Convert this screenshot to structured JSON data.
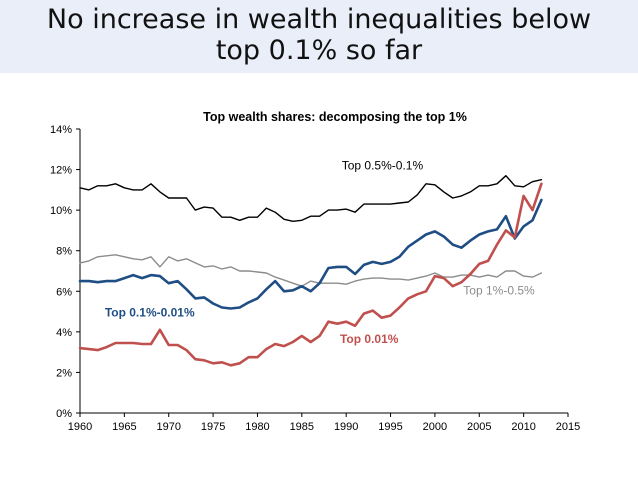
{
  "slide": {
    "title_line1": "No increase in wealth inequalities below",
    "title_line2": "top 0.1% so far",
    "header_bg": "#e9eef9"
  },
  "chart_data": {
    "type": "line",
    "title": "Top wealth shares: decomposing the top 1%",
    "xlabel": "",
    "ylabel": "",
    "xlim": [
      1960,
      2015
    ],
    "ylim": [
      0,
      14
    ],
    "x_ticks": [
      1960,
      1965,
      1970,
      1975,
      1980,
      1985,
      1990,
      1995,
      2000,
      2005,
      2010,
      2015
    ],
    "y_ticks": [
      0,
      2,
      4,
      6,
      8,
      10,
      12,
      14
    ],
    "y_tick_labels": [
      "0%",
      "2%",
      "4%",
      "6%",
      "8%",
      "10%",
      "12%",
      "14%"
    ],
    "grid": false,
    "x": [
      1960,
      1961,
      1962,
      1963,
      1964,
      1965,
      1966,
      1967,
      1968,
      1969,
      1970,
      1971,
      1972,
      1973,
      1974,
      1975,
      1976,
      1977,
      1978,
      1979,
      1980,
      1981,
      1982,
      1983,
      1984,
      1985,
      1986,
      1987,
      1988,
      1989,
      1990,
      1991,
      1992,
      1993,
      1994,
      1995,
      1996,
      1997,
      1998,
      1999,
      2000,
      2001,
      2002,
      2003,
      2004,
      2005,
      2006,
      2007,
      2008,
      2009,
      2010,
      2011,
      2012
    ],
    "series": [
      {
        "name": "Top 0.5%-0.1%",
        "color": "#000000",
        "width": 1.4,
        "values": [
          11.1,
          11.0,
          11.2,
          11.2,
          11.3,
          11.1,
          11.0,
          11.0,
          11.3,
          10.9,
          10.6,
          10.6,
          10.6,
          10.0,
          10.15,
          10.1,
          9.65,
          9.65,
          9.5,
          9.65,
          9.65,
          10.1,
          9.9,
          9.55,
          9.45,
          9.5,
          9.7,
          9.7,
          10.0,
          10.0,
          10.05,
          9.9,
          10.3,
          10.3,
          10.3,
          10.3,
          10.35,
          10.4,
          10.75,
          11.3,
          11.25,
          10.9,
          10.6,
          10.7,
          10.9,
          11.2,
          11.2,
          11.3,
          11.7,
          11.2,
          11.15,
          11.4,
          11.5
        ]
      },
      {
        "name": "Top 1%-0.5%",
        "color": "#8c8c8c",
        "width": 1.4,
        "values": [
          7.4,
          7.5,
          7.7,
          7.75,
          7.8,
          7.7,
          7.6,
          7.55,
          7.7,
          7.2,
          7.7,
          7.5,
          7.6,
          7.4,
          7.2,
          7.25,
          7.1,
          7.2,
          7.0,
          7.0,
          6.95,
          6.9,
          6.7,
          6.55,
          6.4,
          6.25,
          6.5,
          6.4,
          6.4,
          6.4,
          6.35,
          6.5,
          6.6,
          6.65,
          6.65,
          6.6,
          6.6,
          6.55,
          6.65,
          6.75,
          6.9,
          6.7,
          6.7,
          6.8,
          6.8,
          6.7,
          6.8,
          6.7,
          7.0,
          7.0,
          6.75,
          6.7,
          6.9
        ]
      },
      {
        "name": "Top 0.1%-0.01%",
        "color": "#1f4e84",
        "width": 2.6,
        "values": [
          6.5,
          6.5,
          6.45,
          6.5,
          6.5,
          6.65,
          6.8,
          6.65,
          6.8,
          6.75,
          6.4,
          6.5,
          6.1,
          5.65,
          5.7,
          5.4,
          5.2,
          5.15,
          5.2,
          5.45,
          5.65,
          6.1,
          6.5,
          6.0,
          6.05,
          6.25,
          6.0,
          6.4,
          7.15,
          7.2,
          7.2,
          6.85,
          7.3,
          7.45,
          7.35,
          7.45,
          7.7,
          8.2,
          8.5,
          8.8,
          8.95,
          8.7,
          8.3,
          8.15,
          8.5,
          8.8,
          8.95,
          9.05,
          9.7,
          8.6,
          9.2,
          9.5,
          10.5
        ]
      },
      {
        "name": "Top 0.01%",
        "color": "#c0504d",
        "width": 2.6,
        "values": [
          3.2,
          3.15,
          3.1,
          3.25,
          3.45,
          3.45,
          3.45,
          3.4,
          3.4,
          4.1,
          3.35,
          3.35,
          3.1,
          2.65,
          2.6,
          2.45,
          2.5,
          2.35,
          2.45,
          2.75,
          2.75,
          3.15,
          3.4,
          3.3,
          3.5,
          3.8,
          3.5,
          3.8,
          4.5,
          4.4,
          4.5,
          4.3,
          4.9,
          5.05,
          4.7,
          4.8,
          5.2,
          5.65,
          5.85,
          6.0,
          6.75,
          6.65,
          6.25,
          6.45,
          6.85,
          7.35,
          7.5,
          8.3,
          9.0,
          8.65,
          10.7,
          10.0,
          11.3
        ]
      }
    ],
    "annotations": [
      {
        "text": "Top 0.5%-0.1%",
        "x": 1989.5,
        "y": 12.0,
        "color": "#000000",
        "weight": "normal"
      },
      {
        "text": "Top 1%-0.5%",
        "x": 2003.2,
        "y": 5.85,
        "color": "#8c8c8c",
        "weight": "normal"
      },
      {
        "text": "Top 0.1%-0.01%",
        "x": 1962.8,
        "y": 4.75,
        "color": "#1f4e84",
        "weight": "bold"
      },
      {
        "text": "Top 0.01%",
        "x": 1989.3,
        "y": 3.45,
        "color": "#c0504d",
        "weight": "bold"
      }
    ]
  }
}
